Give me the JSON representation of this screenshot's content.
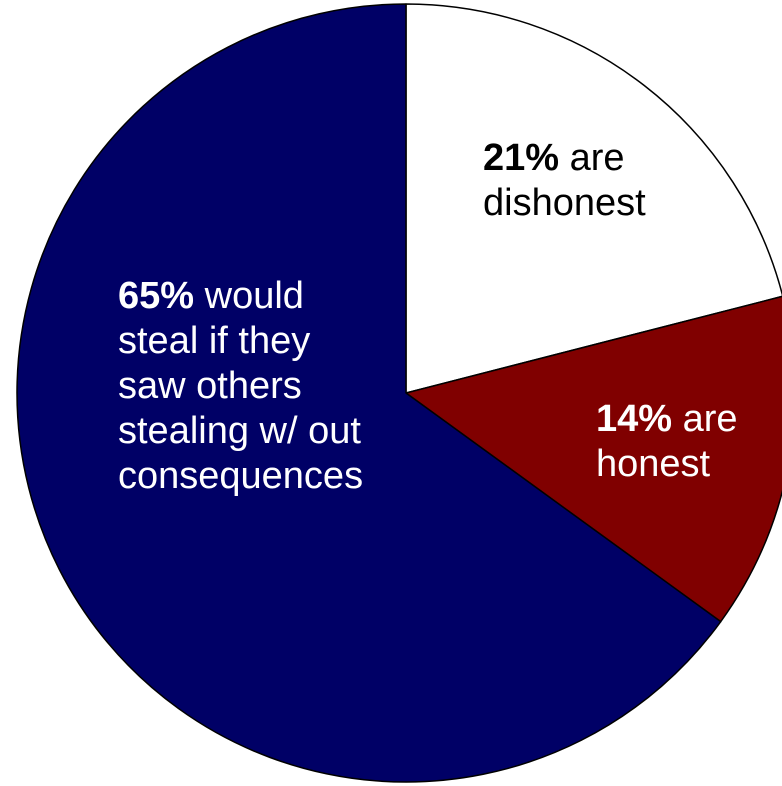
{
  "chart_data": {
    "type": "pie",
    "start": "12 o'clock, clockwise",
    "slices": [
      {
        "pct_label": "21%",
        "rest_lines": [
          "are",
          "dishonest"
        ],
        "value": 21,
        "color": "#ffffff",
        "text_color": "#000000"
      },
      {
        "pct_label": "14%",
        "rest_lines": [
          "are",
          "honest"
        ],
        "value": 14,
        "color": "#800000",
        "text_color": "#ffffff"
      },
      {
        "pct_label": "65%",
        "rest_lines": [
          "would",
          "steal if they",
          "saw others",
          "stealing w/ out",
          "consequences"
        ],
        "value": 65,
        "color": "#000066",
        "text_color": "#ffffff"
      }
    ],
    "outline_color": "#000000"
  }
}
